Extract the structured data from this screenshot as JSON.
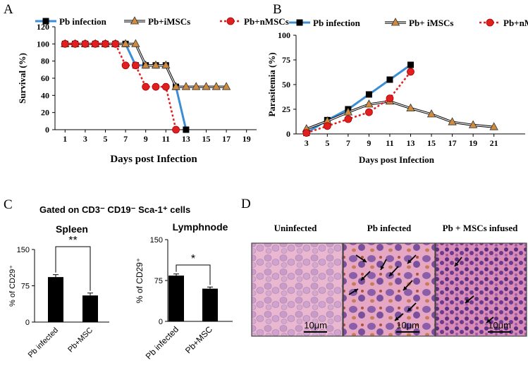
{
  "colors": {
    "blue": "#3b8ed6",
    "brown_fill": "#d08b3c",
    "red": "#e02020",
    "black": "#000000",
    "bar": "#000000"
  },
  "chart_data": [
    {
      "panel_label": "A",
      "type": "line",
      "title": "",
      "xlabel": "Days post Infection",
      "ylabel": "Survival (%)",
      "xlim": [
        0,
        20
      ],
      "ylim": [
        0,
        120
      ],
      "xticks": [
        "1",
        "3",
        "5",
        "7",
        "9",
        "11",
        "13",
        "15",
        "17",
        "19"
      ],
      "yticks": [
        "0",
        "20",
        "40",
        "60",
        "80",
        "100",
        "120"
      ],
      "legend": [
        "Pb infection",
        "Pb+iMSCs",
        "Pb+nMSCs"
      ],
      "series": [
        {
          "name": "Pb infection",
          "marker": "square",
          "x": [
            1,
            2,
            3,
            4,
            5,
            6,
            7,
            8,
            9,
            10,
            11,
            12,
            13
          ],
          "y": [
            100,
            100,
            100,
            100,
            100,
            100,
            100,
            75,
            75,
            75,
            75,
            50,
            0
          ]
        },
        {
          "name": "Pb+iMSCs",
          "marker": "triangle",
          "x": [
            1,
            2,
            3,
            4,
            5,
            6,
            7,
            8,
            9,
            10,
            11,
            12,
            13,
            14,
            15,
            16,
            17
          ],
          "y": [
            100,
            100,
            100,
            100,
            100,
            100,
            100,
            100,
            75,
            75,
            75,
            50,
            50,
            50,
            50,
            50,
            50
          ]
        },
        {
          "name": "Pb+nMSCs",
          "marker": "circle",
          "x": [
            1,
            2,
            3,
            4,
            5,
            6,
            7,
            8,
            9,
            10,
            11,
            12
          ],
          "y": [
            100,
            100,
            100,
            100,
            100,
            100,
            75,
            75,
            50,
            50,
            50,
            0
          ]
        }
      ]
    },
    {
      "panel_label": "B",
      "type": "line",
      "title": "",
      "xlabel": "Days post Infection",
      "ylabel": "Parasitemia (%)",
      "xlim": [
        2,
        24
      ],
      "ylim": [
        0,
        100
      ],
      "xticks": [
        "3",
        "5",
        "7",
        "9",
        "11",
        "13",
        "15",
        "17",
        "19",
        "21"
      ],
      "yticks": [
        "0",
        "25",
        "50",
        "75",
        "100"
      ],
      "legend": [
        "Pb infection",
        "Pb+ iMSCs",
        "Pb+nMSCs"
      ],
      "series": [
        {
          "name": "Pb infection",
          "marker": "square",
          "x": [
            3,
            5,
            7,
            9,
            11,
            13
          ],
          "y": [
            1,
            14,
            25,
            40,
            55,
            70
          ]
        },
        {
          "name": "Pb+ iMSCs",
          "marker": "triangle",
          "x": [
            3,
            5,
            7,
            9,
            11,
            13,
            15,
            17,
            19,
            21
          ],
          "y": [
            5,
            13,
            22,
            30,
            33,
            26,
            20,
            12,
            9,
            7
          ]
        },
        {
          "name": "Pb+nMSCs",
          "marker": "circle",
          "x": [
            3,
            5,
            7,
            9,
            11,
            13
          ],
          "y": [
            1,
            8,
            15,
            22,
            36,
            63
          ]
        }
      ]
    },
    {
      "panel_label": "C",
      "type": "bar",
      "title": "Spleen",
      "xlabel": "",
      "ylabel": "% of CD29⁺",
      "ylim": [
        0,
        150
      ],
      "yticks": [
        "0",
        "75",
        "150"
      ],
      "categories": [
        "Pb infected",
        "Pb+MSC"
      ],
      "values": [
        93,
        55
      ],
      "errors": [
        5,
        5
      ],
      "significance": "**"
    },
    {
      "panel_label": "",
      "type": "bar",
      "title": "Lymphnode",
      "xlabel": "",
      "ylabel": "% of CD29⁺",
      "ylim": [
        0,
        150
      ],
      "yticks": [
        "0",
        "75",
        "150"
      ],
      "categories": [
        "Pb infected",
        "Pb+MSC"
      ],
      "values": [
        84,
        60
      ],
      "errors": [
        3,
        3
      ],
      "significance": "*"
    }
  ],
  "panel_c": {
    "gating_title": "Gated on CD3⁻ CD19⁻ Sca-1⁺ cells"
  },
  "panel_d": {
    "label": "D",
    "images": [
      {
        "title": "Uninfected",
        "scale": "",
        "icon": "histology-uninfected-image"
      },
      {
        "title": "Pb infected",
        "scale": "10μm",
        "icon": "histology-pb-infected-image"
      },
      {
        "title": "Pb + MSCs infused",
        "scale": "10μm",
        "icon": "histology-msc-infused-image"
      }
    ],
    "first_scale": "10μm"
  }
}
